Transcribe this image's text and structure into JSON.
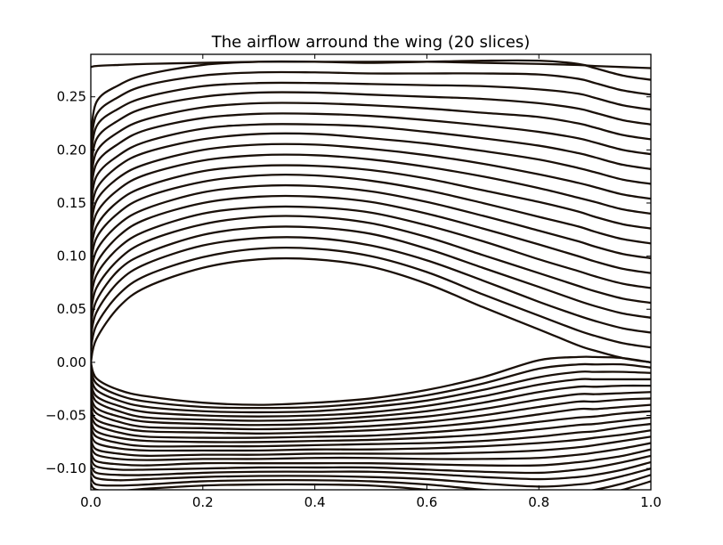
{
  "chart_data": {
    "type": "line",
    "title": "The airflow arround the wing (20 slices)",
    "xlabel": "",
    "ylabel": "",
    "xlim": [
      0.0,
      1.0
    ],
    "ylim": [
      -0.12,
      0.29
    ],
    "x_ticks": [
      "0.0",
      "0.2",
      "0.4",
      "0.6",
      "0.8",
      "1.0"
    ],
    "x_tick_values": [
      0.0,
      0.2,
      0.4,
      0.6,
      0.8,
      1.0
    ],
    "y_ticks": [
      "−0.10",
      "−0.05",
      "0.00",
      "0.05",
      "0.10",
      "0.15",
      "0.20",
      "0.25"
    ],
    "y_tick_values": [
      -0.1,
      -0.05,
      0.0,
      0.05,
      0.1,
      0.15,
      0.2,
      0.25
    ],
    "grid": false,
    "line_color": "#1a1009",
    "x": [
      0.0,
      0.01,
      0.05,
      0.1,
      0.2,
      0.3,
      0.4,
      0.5,
      0.6,
      0.7,
      0.8,
      0.87,
      0.9,
      0.95,
      1.0
    ],
    "upper_series": [
      {
        "values": [
          0.0,
          0.022,
          0.052,
          0.071,
          0.089,
          0.097,
          0.097,
          0.09,
          0.074,
          0.052,
          0.031,
          0.016,
          0.011,
          0.004,
          0.0
        ]
      },
      {
        "values": [
          0.011,
          0.035,
          0.064,
          0.082,
          0.099,
          0.107,
          0.107,
          0.1,
          0.085,
          0.064,
          0.044,
          0.03,
          0.025,
          0.018,
          0.014
        ]
      },
      {
        "values": [
          0.022,
          0.047,
          0.076,
          0.093,
          0.11,
          0.117,
          0.117,
          0.11,
          0.096,
          0.077,
          0.057,
          0.044,
          0.039,
          0.032,
          0.028
        ]
      },
      {
        "values": [
          0.033,
          0.058,
          0.087,
          0.103,
          0.12,
          0.127,
          0.127,
          0.121,
          0.107,
          0.089,
          0.071,
          0.058,
          0.053,
          0.046,
          0.042
        ]
      },
      {
        "values": [
          0.044,
          0.07,
          0.097,
          0.114,
          0.13,
          0.137,
          0.137,
          0.131,
          0.118,
          0.101,
          0.084,
          0.072,
          0.067,
          0.06,
          0.056
        ]
      },
      {
        "values": [
          0.055,
          0.082,
          0.108,
          0.124,
          0.14,
          0.146,
          0.146,
          0.141,
          0.129,
          0.114,
          0.097,
          0.086,
          0.081,
          0.074,
          0.07
        ]
      },
      {
        "values": [
          0.066,
          0.093,
          0.119,
          0.135,
          0.15,
          0.156,
          0.156,
          0.151,
          0.14,
          0.126,
          0.111,
          0.1,
          0.095,
          0.088,
          0.084
        ]
      },
      {
        "values": [
          0.077,
          0.105,
          0.13,
          0.145,
          0.16,
          0.166,
          0.166,
          0.161,
          0.151,
          0.138,
          0.124,
          0.114,
          0.109,
          0.102,
          0.098
        ]
      },
      {
        "values": [
          0.088,
          0.117,
          0.141,
          0.156,
          0.17,
          0.176,
          0.176,
          0.171,
          0.162,
          0.15,
          0.137,
          0.128,
          0.123,
          0.116,
          0.112
        ]
      },
      {
        "values": [
          0.099,
          0.128,
          0.152,
          0.166,
          0.18,
          0.185,
          0.185,
          0.181,
          0.173,
          0.162,
          0.151,
          0.142,
          0.137,
          0.13,
          0.126
        ]
      },
      {
        "values": [
          0.11,
          0.14,
          0.163,
          0.177,
          0.19,
          0.195,
          0.195,
          0.191,
          0.184,
          0.175,
          0.164,
          0.155,
          0.151,
          0.144,
          0.14
        ]
      },
      {
        "values": [
          0.121,
          0.152,
          0.174,
          0.187,
          0.2,
          0.205,
          0.205,
          0.201,
          0.195,
          0.187,
          0.177,
          0.169,
          0.165,
          0.158,
          0.154
        ]
      },
      {
        "values": [
          0.132,
          0.163,
          0.185,
          0.198,
          0.21,
          0.215,
          0.215,
          0.211,
          0.206,
          0.199,
          0.191,
          0.183,
          0.179,
          0.172,
          0.168
        ]
      },
      {
        "values": [
          0.143,
          0.175,
          0.195,
          0.208,
          0.22,
          0.224,
          0.224,
          0.222,
          0.217,
          0.211,
          0.204,
          0.197,
          0.193,
          0.186,
          0.182
        ]
      },
      {
        "values": [
          0.154,
          0.187,
          0.206,
          0.219,
          0.23,
          0.234,
          0.234,
          0.232,
          0.228,
          0.223,
          0.217,
          0.211,
          0.207,
          0.2,
          0.196
        ]
      },
      {
        "values": [
          0.165,
          0.198,
          0.217,
          0.229,
          0.24,
          0.244,
          0.244,
          0.242,
          0.239,
          0.235,
          0.231,
          0.225,
          0.221,
          0.214,
          0.21
        ]
      },
      {
        "values": [
          0.176,
          0.21,
          0.228,
          0.24,
          0.25,
          0.254,
          0.254,
          0.252,
          0.25,
          0.248,
          0.244,
          0.239,
          0.235,
          0.228,
          0.224
        ]
      },
      {
        "values": [
          0.187,
          0.222,
          0.239,
          0.25,
          0.26,
          0.263,
          0.263,
          0.262,
          0.261,
          0.26,
          0.257,
          0.253,
          0.249,
          0.242,
          0.238
        ]
      },
      {
        "values": [
          0.198,
          0.233,
          0.25,
          0.261,
          0.27,
          0.273,
          0.273,
          0.272,
          0.272,
          0.272,
          0.271,
          0.267,
          0.263,
          0.256,
          0.252
        ]
      },
      {
        "values": [
          0.209,
          0.245,
          0.261,
          0.271,
          0.28,
          0.283,
          0.283,
          0.282,
          0.283,
          0.284,
          0.284,
          0.281,
          0.277,
          0.27,
          0.266
        ]
      }
    ],
    "upper_top_line": {
      "values": [
        0.278,
        0.279,
        0.28,
        0.281,
        0.282,
        0.283,
        0.283,
        0.283,
        0.283,
        0.282,
        0.281,
        0.28,
        0.279,
        0.278,
        0.277
      ]
    },
    "lower_series": [
      {
        "values": [
          0.0,
          -0.015,
          -0.026,
          -0.032,
          -0.038,
          -0.04,
          -0.038,
          -0.034,
          -0.026,
          -0.014,
          0.002,
          0.005,
          0.005,
          0.004,
          0.0
        ]
      },
      {
        "values": [
          -0.006,
          -0.02,
          -0.031,
          -0.037,
          -0.042,
          -0.043,
          -0.042,
          -0.038,
          -0.031,
          -0.02,
          -0.006,
          -0.002,
          -0.002,
          -0.002,
          -0.005
        ]
      },
      {
        "values": [
          -0.012,
          -0.026,
          -0.036,
          -0.042,
          -0.046,
          -0.047,
          -0.046,
          -0.042,
          -0.036,
          -0.026,
          -0.014,
          -0.009,
          -0.009,
          -0.009,
          -0.01
        ]
      },
      {
        "values": [
          -0.018,
          -0.032,
          -0.041,
          -0.047,
          -0.05,
          -0.051,
          -0.05,
          -0.047,
          -0.041,
          -0.032,
          -0.021,
          -0.016,
          -0.016,
          -0.016,
          -0.016
        ]
      },
      {
        "values": [
          -0.024,
          -0.037,
          -0.046,
          -0.052,
          -0.054,
          -0.055,
          -0.054,
          -0.051,
          -0.046,
          -0.038,
          -0.028,
          -0.023,
          -0.023,
          -0.022,
          -0.022
        ]
      },
      {
        "values": [
          -0.03,
          -0.043,
          -0.051,
          -0.056,
          -0.058,
          -0.059,
          -0.058,
          -0.055,
          -0.051,
          -0.044,
          -0.035,
          -0.03,
          -0.03,
          -0.029,
          -0.028
        ]
      },
      {
        "values": [
          -0.036,
          -0.048,
          -0.056,
          -0.061,
          -0.062,
          -0.063,
          -0.062,
          -0.06,
          -0.056,
          -0.05,
          -0.042,
          -0.037,
          -0.037,
          -0.035,
          -0.034
        ]
      },
      {
        "values": [
          -0.042,
          -0.054,
          -0.061,
          -0.065,
          -0.066,
          -0.067,
          -0.066,
          -0.064,
          -0.061,
          -0.056,
          -0.049,
          -0.044,
          -0.044,
          -0.042,
          -0.04
        ]
      },
      {
        "values": [
          -0.048,
          -0.059,
          -0.066,
          -0.07,
          -0.071,
          -0.071,
          -0.07,
          -0.069,
          -0.066,
          -0.062,
          -0.056,
          -0.052,
          -0.051,
          -0.048,
          -0.046
        ]
      },
      {
        "values": [
          -0.054,
          -0.065,
          -0.071,
          -0.074,
          -0.075,
          -0.075,
          -0.074,
          -0.073,
          -0.071,
          -0.068,
          -0.063,
          -0.059,
          -0.058,
          -0.055,
          -0.052
        ]
      },
      {
        "values": [
          -0.06,
          -0.07,
          -0.076,
          -0.079,
          -0.079,
          -0.079,
          -0.078,
          -0.077,
          -0.076,
          -0.074,
          -0.07,
          -0.066,
          -0.065,
          -0.061,
          -0.058
        ]
      },
      {
        "values": [
          -0.066,
          -0.076,
          -0.081,
          -0.083,
          -0.083,
          -0.083,
          -0.082,
          -0.082,
          -0.081,
          -0.079,
          -0.076,
          -0.073,
          -0.071,
          -0.068,
          -0.064
        ]
      },
      {
        "values": [
          -0.072,
          -0.082,
          -0.086,
          -0.088,
          -0.087,
          -0.087,
          -0.086,
          -0.086,
          -0.086,
          -0.085,
          -0.083,
          -0.08,
          -0.078,
          -0.074,
          -0.07
        ]
      },
      {
        "values": [
          -0.078,
          -0.087,
          -0.091,
          -0.092,
          -0.091,
          -0.091,
          -0.09,
          -0.09,
          -0.091,
          -0.091,
          -0.09,
          -0.087,
          -0.085,
          -0.081,
          -0.076
        ]
      },
      {
        "values": [
          -0.084,
          -0.093,
          -0.096,
          -0.097,
          -0.095,
          -0.095,
          -0.095,
          -0.095,
          -0.096,
          -0.097,
          -0.097,
          -0.094,
          -0.092,
          -0.088,
          -0.082
        ]
      },
      {
        "values": [
          -0.09,
          -0.098,
          -0.101,
          -0.101,
          -0.1,
          -0.099,
          -0.099,
          -0.099,
          -0.101,
          -0.103,
          -0.104,
          -0.101,
          -0.099,
          -0.094,
          -0.088
        ]
      },
      {
        "values": [
          -0.096,
          -0.104,
          -0.106,
          -0.106,
          -0.104,
          -0.103,
          -0.103,
          -0.103,
          -0.105,
          -0.108,
          -0.11,
          -0.108,
          -0.106,
          -0.101,
          -0.094
        ]
      },
      {
        "values": [
          -0.102,
          -0.109,
          -0.111,
          -0.11,
          -0.108,
          -0.107,
          -0.107,
          -0.108,
          -0.11,
          -0.114,
          -0.117,
          -0.115,
          -0.113,
          -0.107,
          -0.1
        ]
      },
      {
        "values": [
          -0.108,
          -0.115,
          -0.116,
          -0.115,
          -0.112,
          -0.111,
          -0.111,
          -0.112,
          -0.115,
          -0.12,
          -0.124,
          -0.122,
          -0.12,
          -0.114,
          -0.106
        ]
      },
      {
        "values": [
          -0.114,
          -0.12,
          -0.121,
          -0.119,
          -0.116,
          -0.115,
          -0.115,
          -0.116,
          -0.12,
          -0.126,
          -0.131,
          -0.129,
          -0.127,
          -0.12,
          -0.112
        ]
      }
    ]
  }
}
